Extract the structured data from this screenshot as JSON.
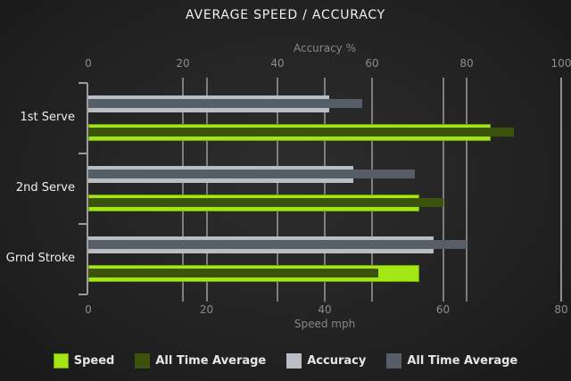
{
  "chart_data": {
    "type": "bar",
    "orientation": "horizontal",
    "title": "AVERAGE SPEED / ACCURACY",
    "categories": [
      "1st Serve",
      "2nd Serve",
      "Grnd Stroke"
    ],
    "axes": {
      "top": {
        "label": "Accuracy %",
        "min": 0,
        "max": 100,
        "ticks": [
          0,
          20,
          40,
          60,
          80,
          100
        ]
      },
      "bottom": {
        "label": "Speed mph",
        "min": 0,
        "max": 80,
        "ticks": [
          0,
          20,
          40,
          60,
          80
        ]
      }
    },
    "series": [
      {
        "name": "Speed",
        "axis": "bottom",
        "color": "#a2e613",
        "border": "#72a20d",
        "values": [
          68,
          56,
          56
        ]
      },
      {
        "name": "All Time Average",
        "axis": "bottom",
        "color": "#3b530a",
        "border": null,
        "values": [
          72,
          60,
          49
        ]
      },
      {
        "name": "Accuracy",
        "axis": "top",
        "color": "#b8bec4",
        "border": null,
        "values": [
          51,
          56,
          73
        ]
      },
      {
        "name": "All Time Average",
        "axis": "top",
        "color": "#565e68",
        "border": null,
        "values": [
          58,
          69,
          80
        ]
      }
    ],
    "legend": [
      "Speed",
      "All Time Average",
      "Accuracy",
      "All Time Average"
    ],
    "legend_position": "bottom",
    "grid": true,
    "colors": {
      "background_center": "#2d2d2d",
      "background_edge": "#161616",
      "axis": "#9c9c9c",
      "gridline": "#979797",
      "title_text": "#f2f2f2",
      "tick_text": "#8d8d8d",
      "category_text": "#ededed",
      "legend_text": "#e6e6e6"
    }
  }
}
